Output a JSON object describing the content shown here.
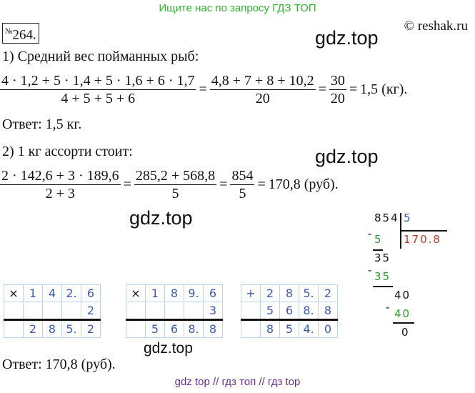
{
  "banner": "Ищите нас по запросу ГДЗ ТОП",
  "reshak": "© reshak.ru",
  "problem": {
    "prefix": "№",
    "number": "264."
  },
  "watermarks": [
    "gdz.top",
    "gdz.top",
    "gdz.top",
    "gdz.top"
  ],
  "part1": {
    "heading": "1) Средний вес пойманных рыб:",
    "f1_num": "4 · 1,2 + 5 · 1,4 + 5 · 1,6 + 6 · 1,7",
    "f1_den": "4 + 5 + 5 + 6",
    "f2_num": "4,8 + 7 + 8 + 10,2",
    "f2_den": "20",
    "f3_num": "30",
    "f3_den": "20",
    "result": "1,5 (кг).",
    "answer": "Ответ: 1,5 кг."
  },
  "part2": {
    "heading": "2) 1 кг ассорти стоит:",
    "f1_num": "2 · 142,6 + 3 · 189,6",
    "f1_den": "2 + 3",
    "f2_num": "285,2 + 568,8",
    "f2_den": "5",
    "f3_num": "854",
    "f3_den": "5",
    "result": "170,8 (руб).",
    "answer": "Ответ: 170,8 (руб)."
  },
  "division": {
    "dividend": "854",
    "divisor": "5",
    "quotient": "170.8",
    "steps": [
      "5",
      "35",
      "35",
      "40",
      "40",
      "0"
    ],
    "minus": "-"
  },
  "mult1": {
    "op": "×",
    "row1": [
      "1",
      "4",
      "2.",
      "6"
    ],
    "row2": [
      "",
      "",
      "",
      "2"
    ],
    "res": [
      "2",
      "8",
      "5.",
      "2"
    ]
  },
  "mult2": {
    "op": "×",
    "row1": [
      "1",
      "8",
      "9.",
      "6"
    ],
    "row2": [
      "",
      "",
      "",
      "3"
    ],
    "res": [
      "5",
      "6",
      "8.",
      "8"
    ]
  },
  "add1": {
    "op": "+",
    "row1": [
      "2",
      "8",
      "5.",
      "2"
    ],
    "row2": [
      "5",
      "6",
      "8.",
      "8"
    ],
    "res": [
      "8",
      "5",
      "4.",
      "0"
    ]
  },
  "footer": "gdz top  //  гдз топ  //  гдз top"
}
